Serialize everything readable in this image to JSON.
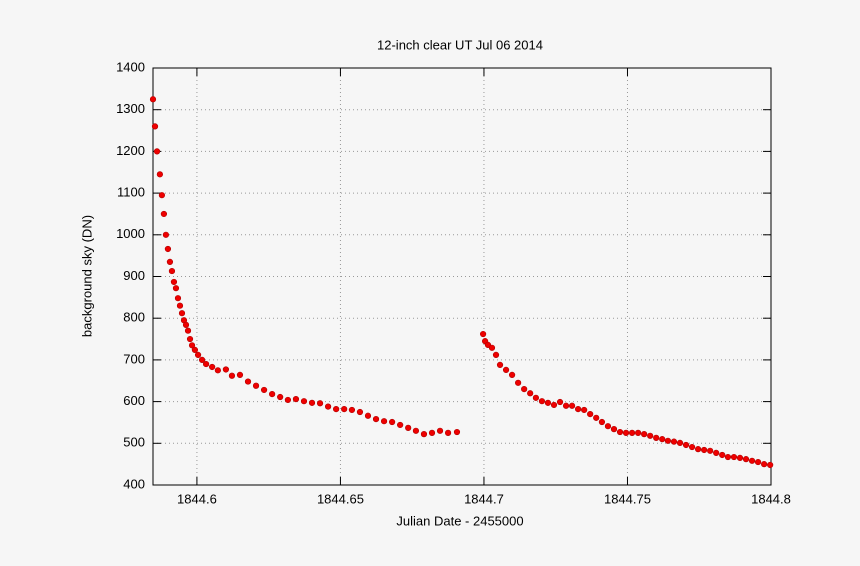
{
  "chart_data": {
    "type": "scatter",
    "title": "12-inch clear UT Jul 06 2014",
    "x_label": "Julian Date - 2455000",
    "y_label": "background sky (DN)",
    "x": [
      1844.5847,
      1844.5854,
      1844.5861,
      1844.5871,
      1844.5878,
      1844.5885,
      1844.5892,
      1844.5899,
      1844.5906,
      1844.5913,
      1844.592,
      1844.5927,
      1844.5934,
      1844.5941,
      1844.5948,
      1844.5955,
      1844.5962,
      1844.5969,
      1844.5976,
      1844.5983,
      1844.5993,
      1844.6004,
      1844.6018,
      1844.6032,
      1844.6053,
      1844.6073,
      1844.6101,
      1844.6122,
      1844.615,
      1844.6178,
      1844.6206,
      1844.6234,
      1844.6262,
      1844.629,
      1844.6317,
      1844.6345,
      1844.6373,
      1844.6401,
      1844.6429,
      1844.6457,
      1844.6485,
      1844.6513,
      1844.654,
      1844.6568,
      1844.6596,
      1844.6624,
      1844.6652,
      1844.668,
      1844.6708,
      1844.6736,
      1844.6763,
      1844.6791,
      1844.6819,
      1844.6847,
      1844.6875,
      1844.6906,
      1844.6997,
      1844.7004,
      1844.7014,
      1844.7028,
      1844.7042,
      1844.7056,
      1844.7077,
      1844.7098,
      1844.7119,
      1844.714,
      1844.7161,
      1844.7181,
      1844.7202,
      1844.7223,
      1844.7244,
      1844.7265,
      1844.7286,
      1844.7307,
      1844.7328,
      1844.7349,
      1844.737,
      1844.7391,
      1844.7411,
      1844.7432,
      1844.7453,
      1844.7474,
      1844.7495,
      1844.7516,
      1844.7537,
      1844.7558,
      1844.7579,
      1844.76,
      1844.7621,
      1844.7641,
      1844.7662,
      1844.7683,
      1844.7704,
      1844.7725,
      1844.7746,
      1844.7767,
      1844.7788,
      1844.7809,
      1844.783,
      1844.785,
      1844.7871,
      1844.7892,
      1844.7913,
      1844.7934,
      1844.7955,
      1844.7976,
      1844.7997
    ],
    "values": [
      1325,
      1260,
      1200,
      1145,
      1095,
      1050,
      1000,
      966,
      935,
      913,
      887,
      872,
      848,
      830,
      812,
      795,
      784,
      770,
      750,
      735,
      724,
      712,
      700,
      690,
      683,
      675,
      677,
      662,
      664,
      648,
      638,
      628,
      618,
      611,
      604,
      606,
      601,
      597,
      596,
      588,
      582,
      582,
      580,
      575,
      566,
      558,
      553,
      551,
      544,
      537,
      530,
      522,
      525,
      530,
      525,
      527,
      762,
      745,
      736,
      729,
      712,
      688,
      676,
      664,
      645,
      630,
      620,
      609,
      601,
      597,
      592,
      599,
      590,
      590,
      582,
      580,
      570,
      561,
      551,
      541,
      534,
      527,
      525,
      525,
      525,
      522,
      518,
      513,
      510,
      506,
      504,
      501,
      496,
      491,
      486,
      484,
      482,
      477,
      472,
      467,
      467,
      465,
      462,
      458,
      455,
      450,
      448
    ],
    "color": "#ee0000",
    "xlim": [
      1844.5847,
      1844.8
    ],
    "xticks": [
      1844.6,
      1844.65,
      1844.7,
      1844.75,
      1844.8
    ],
    "ylim": [
      400,
      1400
    ],
    "yticks": [
      400,
      500,
      600,
      700,
      800,
      900,
      1000,
      1100,
      1200,
      1300,
      1400
    ],
    "grid": true
  }
}
